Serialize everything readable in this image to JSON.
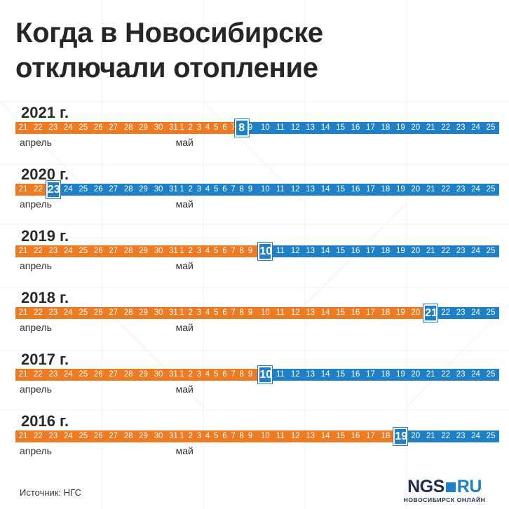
{
  "title": {
    "line1": "Когда в Новосибирске",
    "line2": "отключали отопление"
  },
  "months": {
    "april": "апрель",
    "may": "май"
  },
  "source": "Источник: НГС",
  "logo": {
    "part1": "NGS",
    "part2": "RU",
    "subtitle": "НОВОСИБИРСК ОНЛАЙН"
  },
  "colors": {
    "before_shutoff": "#ee7a22",
    "after_shutoff": "#1e80c6"
  },
  "chart_data": {
    "type": "table",
    "day_sequence": [
      "21",
      "22",
      "23",
      "24",
      "25",
      "26",
      "27",
      "28",
      "29",
      "30",
      "31",
      "1",
      "2",
      "3",
      "4",
      "5",
      "6",
      "7",
      "8",
      "9",
      "10",
      "11",
      "12",
      "13",
      "14",
      "15",
      "16",
      "17",
      "18",
      "19",
      "20",
      "21",
      "22",
      "23",
      "24",
      "25"
    ],
    "series": [
      {
        "name": "2021 г.",
        "shutoff_date": "8 мая",
        "shutoff_day": "8"
      },
      {
        "name": "2020 г.",
        "shutoff_date": "23 апреля",
        "shutoff_day": "23"
      },
      {
        "name": "2019 г.",
        "shutoff_date": "10 мая",
        "shutoff_day": "10"
      },
      {
        "name": "2018 г.",
        "shutoff_date": "21 мая",
        "shutoff_day": "21"
      },
      {
        "name": "2017 г.",
        "shutoff_date": "10 мая",
        "shutoff_day": "10"
      },
      {
        "name": "2016 г.",
        "shutoff_date": "19 мая",
        "shutoff_day": "19"
      }
    ]
  }
}
